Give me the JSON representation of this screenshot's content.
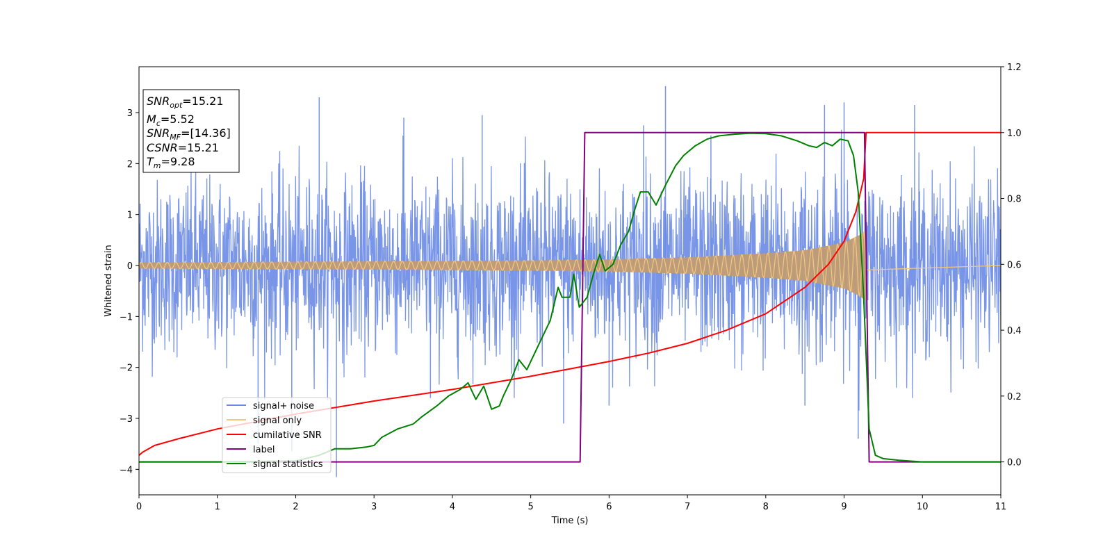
{
  "chart_data": {
    "type": "line",
    "xlabel": "Time (s)",
    "ylabel": "Whitened strain",
    "xlim": [
      0,
      11
    ],
    "ylim": [
      -4.5,
      3.9
    ],
    "y2lim": [
      -0.1,
      1.2
    ],
    "x_ticks": [
      "0",
      "1",
      "2",
      "3",
      "4",
      "5",
      "6",
      "7",
      "8",
      "9",
      "10",
      "11"
    ],
    "y_ticks": [
      "−4",
      "−3",
      "−2",
      "−1",
      "0",
      "1",
      "2",
      "3"
    ],
    "y_tick_values": [
      -4,
      -3,
      -2,
      -1,
      0,
      1,
      2,
      3
    ],
    "y2_ticks": [
      "0.0",
      "0.2",
      "0.4",
      "0.6",
      "0.8",
      "1.0",
      "1.2"
    ],
    "y2_tick_values": [
      0.0,
      0.2,
      0.4,
      0.6,
      0.8,
      1.0,
      1.2
    ],
    "info_box": {
      "snr_opt": {
        "name": "SNR",
        "sub": "opt",
        "value": "=15.21"
      },
      "mc": {
        "name": "M",
        "sub": "c",
        "value": "=5.52"
      },
      "snr_mf": {
        "name": "SNR",
        "sub": "MF",
        "value": "=[14.36]"
      },
      "csnr": {
        "name": "CSNR",
        "value": "=15.21"
      },
      "tm": {
        "name": "T",
        "sub": "m",
        "value": "=9.28"
      }
    },
    "legend": {
      "placement": "lower-left",
      "entries": [
        {
          "label": "signal+ noise",
          "color": "#6a8ae6"
        },
        {
          "label": "signal only",
          "color": "#f5c77e"
        },
        {
          "label": "cumilative SNR",
          "color": "#ff0000"
        },
        {
          "label": "label",
          "color": "#800080"
        },
        {
          "label": "signal statistics",
          "color": "#008000"
        }
      ]
    },
    "series": [
      {
        "name": "signal+ noise",
        "axis": "left",
        "color": "#6a8ae6",
        "kind": "noise",
        "x_range": [
          0,
          11
        ],
        "sigma": 0.85,
        "spikes": [
          [
            2.3,
            3.3
          ],
          [
            2.52,
            -4.15
          ],
          [
            3.38,
            2.9
          ],
          [
            4.38,
            2.95
          ],
          [
            5.42,
            -3.1
          ],
          [
            6.72,
            3.52
          ],
          [
            6.44,
            2.75
          ],
          [
            7.3,
            2.55
          ],
          [
            8.75,
            3.15
          ],
          [
            9.0,
            3.2
          ],
          [
            9.9,
            3.15
          ],
          [
            1.52,
            -3.5
          ],
          [
            1.95,
            -3.65
          ],
          [
            3.72,
            -2.6
          ],
          [
            6.0,
            -2.75
          ],
          [
            9.18,
            -3.4
          ],
          [
            8.5,
            -2.75
          ]
        ]
      },
      {
        "name": "signal only",
        "axis": "left",
        "color": "#f5c77e",
        "kind": "chirp",
        "t_merge": 9.28,
        "amplitude_at_time": [
          [
            0,
            0.06
          ],
          [
            3,
            0.08
          ],
          [
            5,
            0.1
          ],
          [
            6,
            0.12
          ],
          [
            7,
            0.16
          ],
          [
            8,
            0.24
          ],
          [
            8.5,
            0.3
          ],
          [
            9,
            0.45
          ],
          [
            9.2,
            0.6
          ],
          [
            9.28,
            0.7
          ]
        ]
      },
      {
        "name": "cumilative SNR",
        "axis": "right",
        "color": "#ff0000",
        "x": [
          0.0,
          0.05,
          0.2,
          0.5,
          1.0,
          2.0,
          3.0,
          4.0,
          5.0,
          6.0,
          6.5,
          7.0,
          7.5,
          8.0,
          8.5,
          8.8,
          9.0,
          9.15,
          9.25,
          9.28,
          11.0
        ],
        "y": [
          0.02,
          0.03,
          0.05,
          0.07,
          0.1,
          0.145,
          0.185,
          0.22,
          0.26,
          0.305,
          0.33,
          0.36,
          0.4,
          0.45,
          0.53,
          0.6,
          0.67,
          0.76,
          0.86,
          1.0,
          1.0
        ]
      },
      {
        "name": "label",
        "axis": "right",
        "color": "#800080",
        "x": [
          0.0,
          5.63,
          5.69,
          9.26,
          9.32,
          11.0
        ],
        "y": [
          0.0,
          0.0,
          1.0,
          1.0,
          0.0,
          0.0
        ]
      },
      {
        "name": "signal statistics",
        "axis": "right",
        "color": "#008000",
        "x": [
          0.0,
          1.0,
          2.0,
          2.3,
          2.5,
          2.7,
          2.9,
          3.0,
          3.1,
          3.3,
          3.5,
          3.6,
          3.8,
          3.95,
          4.1,
          4.2,
          4.3,
          4.4,
          4.5,
          4.6,
          4.65,
          4.75,
          4.85,
          4.95,
          5.05,
          5.15,
          5.25,
          5.35,
          5.4,
          5.5,
          5.55,
          5.62,
          5.72,
          5.8,
          5.88,
          5.95,
          6.05,
          6.15,
          6.25,
          6.32,
          6.4,
          6.5,
          6.6,
          6.72,
          6.85,
          6.95,
          7.1,
          7.25,
          7.4,
          7.6,
          7.8,
          8.0,
          8.2,
          8.4,
          8.55,
          8.65,
          8.75,
          8.85,
          8.95,
          9.05,
          9.12,
          9.18,
          9.25,
          9.32,
          9.4,
          9.5,
          9.7,
          10.0,
          11.0
        ],
        "y": [
          0.0,
          0.0,
          0.003,
          0.02,
          0.04,
          0.04,
          0.045,
          0.05,
          0.075,
          0.1,
          0.115,
          0.135,
          0.17,
          0.2,
          0.22,
          0.24,
          0.19,
          0.23,
          0.16,
          0.17,
          0.2,
          0.25,
          0.31,
          0.28,
          0.33,
          0.38,
          0.43,
          0.53,
          0.5,
          0.5,
          0.57,
          0.47,
          0.5,
          0.57,
          0.63,
          0.58,
          0.6,
          0.66,
          0.7,
          0.76,
          0.82,
          0.82,
          0.78,
          0.84,
          0.9,
          0.93,
          0.96,
          0.98,
          0.99,
          0.995,
          0.998,
          0.997,
          0.99,
          0.975,
          0.96,
          0.955,
          0.97,
          0.96,
          0.98,
          0.975,
          0.93,
          0.82,
          0.5,
          0.1,
          0.02,
          0.01,
          0.005,
          0.0,
          0.0
        ]
      }
    ]
  }
}
